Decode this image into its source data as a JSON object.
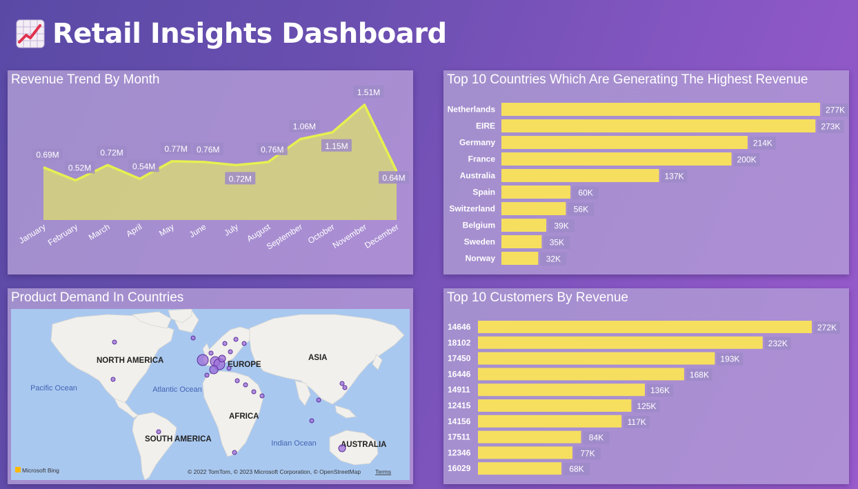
{
  "header": {
    "title": "Retail Insights Dashboard",
    "icon": "chart-increasing-icon"
  },
  "colors": {
    "accent_bar": "#f6df5f",
    "line": "#e6f050",
    "area": "#d7d67a",
    "label_box": "#9f8bc9"
  },
  "chart_data": [
    {
      "id": "revenue_trend",
      "type": "area",
      "title": "Revenue Trend By Month",
      "categories": [
        "January",
        "February",
        "March",
        "April",
        "May",
        "June",
        "July",
        "August",
        "September",
        "October",
        "November",
        "December"
      ],
      "values": [
        0.69,
        0.52,
        0.72,
        0.54,
        0.77,
        0.76,
        0.72,
        0.76,
        1.06,
        1.15,
        1.51,
        0.64
      ],
      "labels": [
        "0.69M",
        "0.52M",
        "0.72M",
        "0.54M",
        "0.77M",
        "0.76M",
        "0.72M",
        "0.76M",
        "1.06M",
        "1.15M",
        "1.51M",
        "0.64M"
      ],
      "unit": "M",
      "grid": false,
      "legend": "none"
    },
    {
      "id": "top_countries",
      "type": "bar",
      "orientation": "horizontal",
      "title": "Top 10 Countries Which Are Generating The Highest Revenue",
      "categories": [
        "Netherlands",
        "EIRE",
        "Germany",
        "France",
        "Australia",
        "Spain",
        "Switzerland",
        "Belgium",
        "Sweden",
        "Norway"
      ],
      "values": [
        277,
        273,
        214,
        200,
        137,
        60,
        56,
        39,
        35,
        32
      ],
      "labels": [
        "277K",
        "273K",
        "214K",
        "200K",
        "137K",
        "60K",
        "56K",
        "39K",
        "35K",
        "32K"
      ],
      "unit": "K",
      "grid": false,
      "legend": "none"
    },
    {
      "id": "top_customers",
      "type": "bar",
      "orientation": "horizontal",
      "title": "Top 10 Customers By Revenue",
      "categories": [
        "14646",
        "18102",
        "17450",
        "16446",
        "14911",
        "12415",
        "14156",
        "17511",
        "12346",
        "16029"
      ],
      "values": [
        272,
        232,
        193,
        168,
        136,
        125,
        117,
        84,
        77,
        68
      ],
      "labels": [
        "272K",
        "232K",
        "193K",
        "168K",
        "136K",
        "125K",
        "117K",
        "84K",
        "77K",
        "68K"
      ],
      "unit": "K",
      "grid": false,
      "legend": "none"
    }
  ],
  "map": {
    "title": "Product Demand In Countries",
    "continents": [
      "NORTH AMERICA",
      "EUROPE",
      "ASIA",
      "AFRICA",
      "SOUTH AMERICA",
      "AUSTRALIA"
    ],
    "oceans": [
      "Pacific Ocean",
      "Atlantic Ocean",
      "Indian Ocean"
    ],
    "attribution": "© 2022 TomTom, © 2023 Microsoft Corporation, © OpenStreetMap",
    "terms": "Terms",
    "brand": "Microsoft Bing"
  }
}
